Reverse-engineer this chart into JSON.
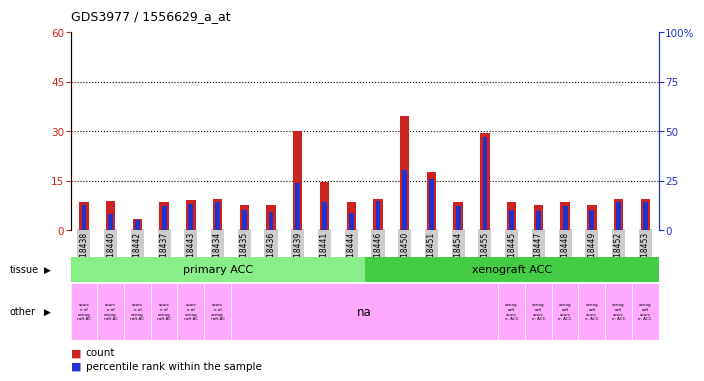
{
  "title": "GDS3977 / 1556629_a_at",
  "samples": [
    "GSM718438",
    "GSM718440",
    "GSM718442",
    "GSM718437",
    "GSM718443",
    "GSM718434",
    "GSM718435",
    "GSM718436",
    "GSM718439",
    "GSM718441",
    "GSM718444",
    "GSM718446",
    "GSM718450",
    "GSM718451",
    "GSM718454",
    "GSM718455",
    "GSM718445",
    "GSM718447",
    "GSM718448",
    "GSM718449",
    "GSM718452",
    "GSM718453"
  ],
  "counts": [
    8.5,
    8.8,
    3.5,
    8.5,
    9.0,
    9.5,
    7.5,
    7.5,
    30.0,
    14.5,
    8.5,
    9.5,
    34.5,
    17.5,
    8.5,
    29.5,
    8.5,
    7.5,
    8.5,
    7.5,
    9.5,
    9.5
  ],
  "percentiles": [
    12.5,
    8.0,
    5.0,
    12.0,
    13.0,
    14.0,
    10.0,
    9.0,
    24.0,
    14.0,
    8.5,
    14.5,
    30.5,
    26.0,
    12.0,
    47.0,
    10.0,
    9.5,
    12.0,
    10.0,
    14.0,
    14.0
  ],
  "primary_acc_count": 11,
  "left_yticks": [
    0,
    15,
    30,
    45,
    60
  ],
  "right_yticks": [
    0,
    25,
    50,
    75,
    100
  ],
  "bar_color_red": "#cc2222",
  "bar_color_blue": "#2233cc",
  "tissue_primary_color": "#88ee88",
  "tissue_xeno_color": "#44cc44",
  "other_pink": "#ffaaff",
  "bg_color": "#ffffff",
  "xtick_bg": "#cccccc"
}
